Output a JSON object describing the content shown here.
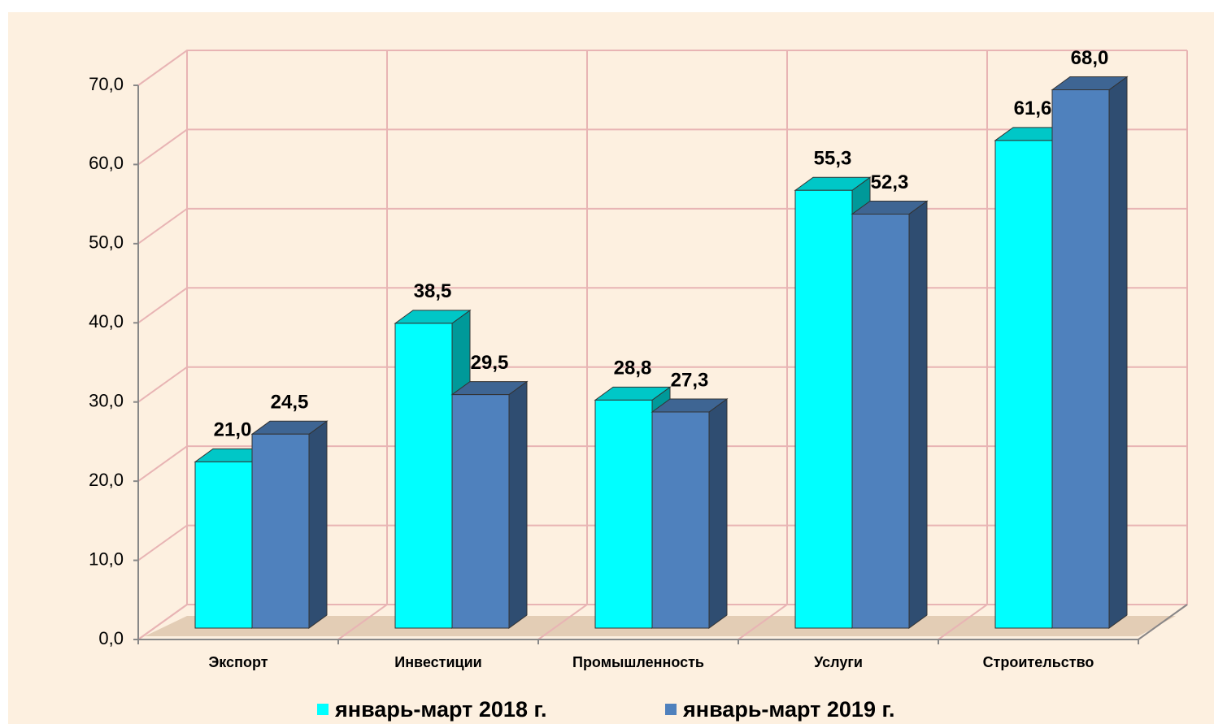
{
  "chart_data": {
    "type": "bar3d",
    "categories": [
      "Экспорт",
      "Инвестиции",
      "Промышленность",
      "Услуги",
      "Строительство"
    ],
    "series": [
      {
        "name": "январь-март 2018 г.",
        "color": "#00ffff",
        "values": [
          21.0,
          38.5,
          28.8,
          55.3,
          61.6
        ],
        "value_labels": [
          "21,0",
          "38,5",
          "28,8",
          "55,3",
          "61,6"
        ]
      },
      {
        "name": "январь-март 2019 г.",
        "color": "#4f81bd",
        "values": [
          24.5,
          29.5,
          27.3,
          52.3,
          68.0
        ],
        "value_labels": [
          "24,5",
          "29,5",
          "27,3",
          "52,3",
          "68,0"
        ]
      }
    ],
    "ylim": [
      0,
      70
    ],
    "yticks": [
      {
        "value": 0,
        "label": "0,0"
      },
      {
        "value": 10,
        "label": "10,0"
      },
      {
        "value": 20,
        "label": "20,0"
      },
      {
        "value": 30,
        "label": "30,0"
      },
      {
        "value": 40,
        "label": "40,0"
      },
      {
        "value": 50,
        "label": "50,0"
      },
      {
        "value": 60,
        "label": "60,0"
      },
      {
        "value": 70,
        "label": "70,0"
      }
    ],
    "grid": true,
    "legend": "bottom"
  }
}
